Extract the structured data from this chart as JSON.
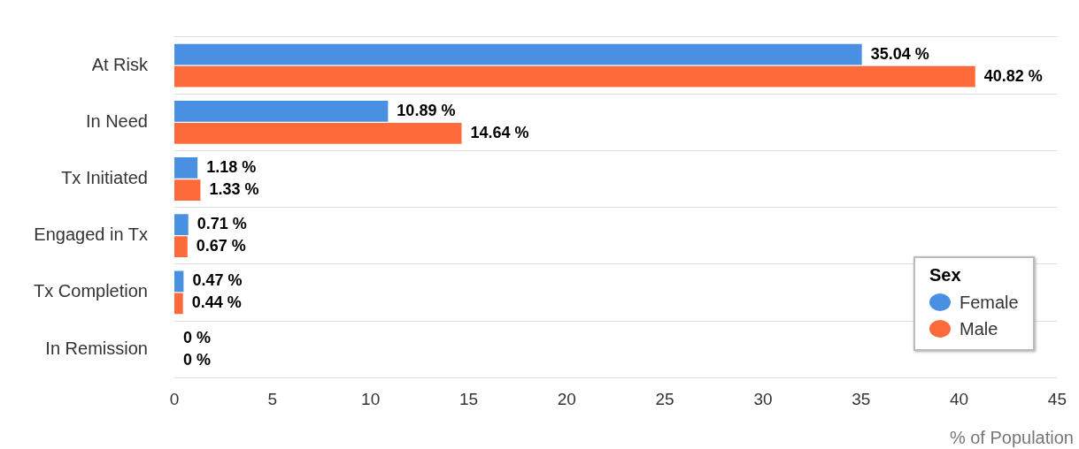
{
  "chart_data": {
    "type": "bar",
    "orientation": "horizontal",
    "xlabel": "% of Population",
    "legend_title": "Sex",
    "categories": [
      "At Risk",
      "In Need",
      "Tx Initiated",
      "Engaged in Tx",
      "Tx Completion",
      "In Remission"
    ],
    "series": [
      {
        "name": "Female",
        "color": "#4a90e2",
        "values": [
          35.04,
          10.89,
          1.18,
          0.71,
          0.47,
          0
        ],
        "value_labels": [
          "35.04 %",
          "10.89 %",
          "1.18 %",
          "0.71 %",
          "0.47 %",
          "0 %"
        ]
      },
      {
        "name": "Male",
        "color": "#ff6a3a",
        "values": [
          40.82,
          14.64,
          1.33,
          0.67,
          0.44,
          0
        ],
        "value_labels": [
          "40.82 %",
          "14.64 %",
          "1.33 %",
          "0.67 %",
          "0.44 %",
          "0 %"
        ]
      }
    ],
    "xlim": [
      0,
      45
    ],
    "xticks": [
      0,
      5,
      10,
      15,
      20,
      25,
      30,
      35,
      40,
      45
    ],
    "grid": "y",
    "legend": "bottom right"
  }
}
